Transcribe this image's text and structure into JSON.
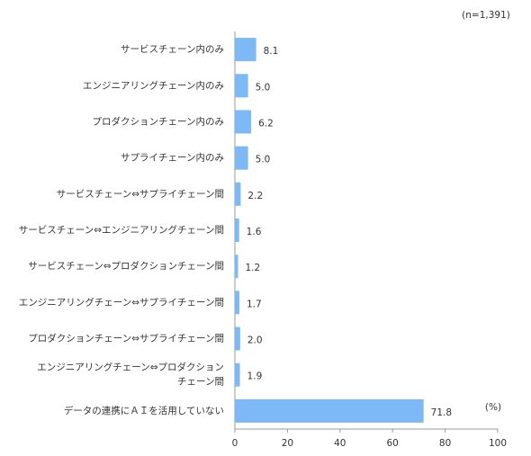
{
  "chart_data": {
    "type": "hbar",
    "note": "(n=1,391)",
    "unit_label": "(%)",
    "categories": [
      "サービスチェーン内のみ",
      "エンジニアリングチェーン内のみ",
      "プロダクションチェーン内のみ",
      "サプライチェーン内のみ",
      "サービスチェーン⇔サプライチェーン間",
      "サービスチェーン⇔エンジニアリングチェーン間",
      "サービスチェーン⇔プロダクションチェーン間",
      "エンジニアリングチェーン⇔サプライチェーン間",
      "プロダクションチェーン⇔サプライチェーン間",
      "エンジニアリングチェーン⇔プロダクション\nチェーン間",
      "データの連携にＡＩを活用していない"
    ],
    "values": [
      8.1,
      5.0,
      6.2,
      5.0,
      2.2,
      1.6,
      1.2,
      1.7,
      2.0,
      1.9,
      71.8
    ],
    "value_labels": [
      "8.1",
      "5.0",
      "6.2",
      "5.0",
      "2.2",
      "1.6",
      "1.2",
      "1.7",
      "2.0",
      "1.9",
      "71.8"
    ],
    "color": "#7cb9f5",
    "xlim": [
      0,
      100
    ],
    "xticks": [
      0,
      20,
      40,
      60,
      80,
      100
    ],
    "grid": false
  }
}
